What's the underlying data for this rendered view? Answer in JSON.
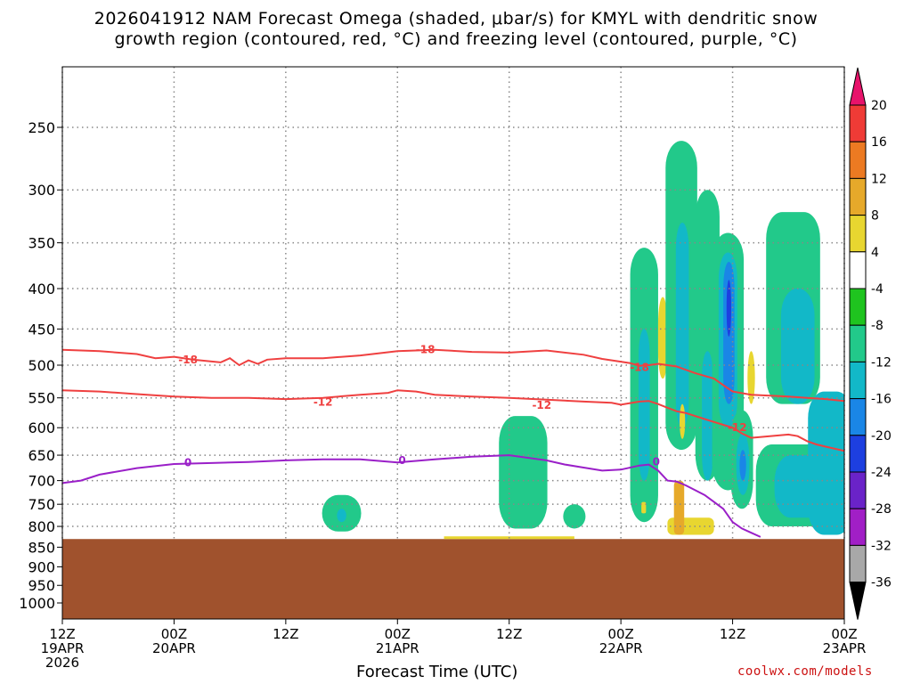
{
  "title": {
    "line1": "2026041912 NAM Forecast Omega (shaded, μbar/s) for KMYL with dendritic snow",
    "line2": "growth region (contoured, red, °C) and freezing level (contoured, purple, °C)"
  },
  "xlabel": "Forecast Time (UTC)",
  "credit": "coolwx.com/models",
  "chart_data": {
    "type": "contour",
    "title": "2026041912 NAM Forecast Omega (shaded, μbar/s) for KMYL with dendritic snow growth region (contoured, red, °C) and freezing level (contoured, purple, °C)",
    "xlabel": "Forecast Time (UTC)",
    "ylabel": "",
    "x_range_hours": [
      0,
      84
    ],
    "y_range_mb": [
      1050,
      200
    ],
    "y_scale": "log-pressure",
    "yticks": [
      250,
      300,
      350,
      400,
      450,
      500,
      550,
      600,
      650,
      700,
      750,
      800,
      850,
      900,
      950,
      1000
    ],
    "xticks": [
      {
        "h": 0,
        "lines": [
          "12Z",
          "19APR",
          "2026"
        ]
      },
      {
        "h": 12,
        "lines": [
          "00Z",
          "20APR"
        ]
      },
      {
        "h": 24,
        "lines": [
          "12Z"
        ]
      },
      {
        "h": 36,
        "lines": [
          "00Z",
          "21APR"
        ]
      },
      {
        "h": 48,
        "lines": [
          "12Z"
        ]
      },
      {
        "h": 60,
        "lines": [
          "00Z",
          "22APR"
        ]
      },
      {
        "h": 72,
        "lines": [
          "12Z"
        ]
      },
      {
        "h": 84,
        "lines": [
          "00Z",
          "23APR"
        ]
      }
    ],
    "grid": true,
    "ground_level_mb": 830,
    "ground_color": "#a0522d",
    "colorbar": {
      "levels": [
        20,
        16,
        12,
        8,
        4,
        -4,
        -8,
        -12,
        -16,
        -20,
        -24,
        -28,
        -32,
        -36
      ],
      "colors": [
        "#e8136b",
        "#ef3b36",
        "#ec7a22",
        "#e6a92a",
        "#e8d630",
        "#ffffff",
        "#1fc41f",
        "#22c98a",
        "#12b8c8",
        "#1a86e6",
        "#1d3fe0",
        "#6a23c8",
        "#a11fc6",
        "#a8a8a8",
        "#000000"
      ]
    },
    "series": [
      {
        "name": "-18",
        "color": "#ef4040",
        "label_at": [
          [
            13.5,
            492
          ],
          [
            39,
            478
          ],
          [
            62,
            503
          ]
        ],
        "x": [
          0,
          4,
          8,
          10,
          12,
          14,
          17,
          18,
          19,
          20,
          21,
          22,
          24,
          28,
          32,
          36,
          40,
          44,
          48,
          52,
          56,
          58,
          60,
          61,
          62,
          63,
          64,
          66,
          68,
          70,
          71,
          72,
          74,
          78,
          80,
          82,
          84
        ],
        "y": [
          478,
          480,
          484,
          490,
          488,
          492,
          496,
          490,
          500,
          493,
          498,
          492,
          490,
          490,
          486,
          480,
          478,
          481,
          482,
          479,
          485,
          491,
          495,
          497,
          501,
          500,
          498,
          502,
          512,
          520,
          530,
          540,
          545,
          548,
          550,
          552,
          555
        ]
      },
      {
        "name": "-12",
        "color": "#ef4040",
        "label_at": [
          [
            28,
            557
          ],
          [
            51.5,
            562
          ],
          [
            72.5,
            600
          ]
        ],
        "x": [
          0,
          4,
          8,
          12,
          16,
          20,
          24,
          28,
          32,
          35,
          36,
          38,
          40,
          44,
          48,
          52,
          56,
          59,
          60,
          62,
          63,
          64,
          65,
          66,
          67,
          68,
          69,
          70,
          71,
          72,
          73,
          74,
          76,
          78,
          79,
          80,
          81,
          82,
          83,
          84
        ],
        "y": [
          538,
          540,
          544,
          548,
          550,
          550,
          552,
          550,
          545,
          542,
          538,
          540,
          545,
          548,
          550,
          553,
          556,
          558,
          561,
          556,
          555,
          560,
          566,
          572,
          575,
          580,
          585,
          590,
          595,
          600,
          610,
          618,
          615,
          612,
          615,
          624,
          630,
          634,
          638,
          642
        ]
      },
      {
        "name": "0",
        "color": "#9a1fc8",
        "label_at": [
          [
            13.5,
            664
          ],
          [
            36.5,
            660
          ],
          [
            63.8,
            663
          ]
        ],
        "x": [
          0,
          2,
          4,
          8,
          12,
          16,
          20,
          24,
          28,
          32,
          36,
          40,
          44,
          48,
          52,
          54,
          56,
          58,
          60,
          62,
          63,
          64,
          65,
          66,
          67,
          68,
          69,
          70,
          71,
          72,
          73,
          74,
          75
        ],
        "y": [
          705,
          700,
          688,
          675,
          667,
          665,
          663,
          660,
          658,
          658,
          664,
          658,
          653,
          650,
          660,
          668,
          674,
          680,
          678,
          670,
          668,
          680,
          700,
          702,
          710,
          720,
          730,
          745,
          760,
          790,
          805,
          815,
          825
        ]
      }
    ]
  }
}
